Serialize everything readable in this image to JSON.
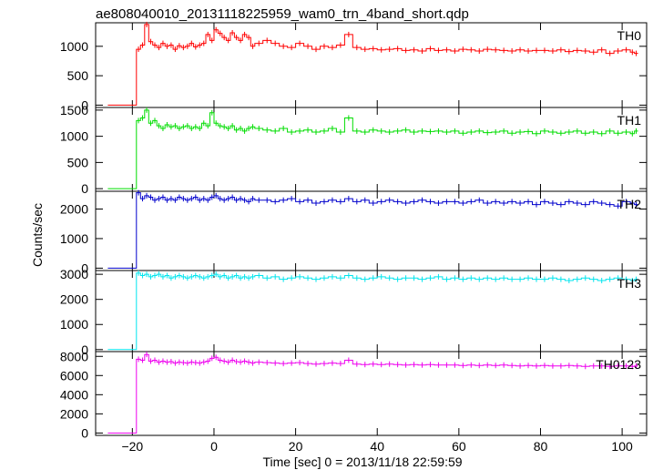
{
  "chart_data": {
    "type": "line",
    "title": "ae808040010_20131118225959_wam0_trn_4band_short.qdp",
    "xlabel": "Time [sec] 0 = 2013/11/18 22:59:59",
    "ylabel": "Counts/sec",
    "xlim": [
      -29,
      106
    ],
    "xticks": [
      -20,
      0,
      20,
      40,
      60,
      80,
      100
    ],
    "xtick_labels": [
      "−20",
      "0",
      "20",
      "40",
      "60",
      "80",
      "100"
    ],
    "grid": false,
    "panels": [
      {
        "name": "TH0",
        "color": "#ff0000",
        "ylim": [
          -40,
          1400
        ],
        "yticks": [
          0,
          500,
          1000
        ],
        "ytick_labels": [
          "0",
          "500",
          "1000"
        ],
        "x": [
          -26,
          -20,
          -19,
          -18,
          -17,
          -16,
          -15,
          -14,
          -13,
          -12,
          -11,
          -10,
          -9,
          -8,
          -7,
          -6,
          -5,
          -4,
          -3,
          -2,
          -1,
          0,
          1,
          2,
          3,
          4,
          5,
          6,
          7,
          8,
          9,
          10,
          12,
          14,
          16,
          18,
          20,
          22,
          24,
          26,
          28,
          30,
          32,
          34,
          36,
          38,
          40,
          42,
          44,
          46,
          48,
          50,
          52,
          54,
          56,
          58,
          60,
          62,
          64,
          66,
          68,
          70,
          72,
          74,
          76,
          78,
          80,
          82,
          84,
          86,
          88,
          90,
          92,
          94,
          96,
          98,
          100,
          102,
          103
        ],
        "y": [
          0,
          0,
          950,
          1020,
          1370,
          1080,
          1020,
          980,
          1050,
          1000,
          1020,
          950,
          1010,
          980,
          1000,
          1050,
          990,
          1020,
          1050,
          1200,
          1100,
          1280,
          1220,
          1150,
          1100,
          1230,
          1150,
          1100,
          1200,
          1150,
          1000,
          1050,
          1100,
          1050,
          1000,
          980,
          1050,
          1000,
          950,
          1000,
          980,
          1020,
          1200,
          980,
          950,
          960,
          940,
          950,
          960,
          930,
          940,
          920,
          960,
          930,
          940,
          920,
          950,
          940,
          920,
          950,
          940,
          930,
          920,
          940,
          920,
          930,
          930,
          920,
          940,
          910,
          930,
          920,
          900,
          940,
          880,
          920,
          940,
          900,
          880
        ]
      },
      {
        "name": "TH1",
        "color": "#00dd00",
        "ylim": [
          -50,
          1550
        ],
        "yticks": [
          0,
          500,
          1000,
          1500
        ],
        "ytick_labels": [
          "0",
          "500",
          "1000",
          "1500"
        ],
        "x": [
          -26,
          -20,
          -19,
          -18,
          -17,
          -16,
          -15,
          -14,
          -13,
          -12,
          -11,
          -10,
          -9,
          -8,
          -7,
          -6,
          -5,
          -4,
          -3,
          -2,
          -1,
          0,
          1,
          2,
          3,
          4,
          5,
          6,
          7,
          8,
          9,
          10,
          12,
          14,
          16,
          18,
          20,
          22,
          24,
          26,
          28,
          30,
          32,
          34,
          36,
          38,
          40,
          42,
          44,
          46,
          48,
          50,
          52,
          54,
          56,
          58,
          60,
          62,
          64,
          66,
          68,
          70,
          72,
          74,
          76,
          78,
          80,
          82,
          84,
          86,
          88,
          90,
          92,
          94,
          96,
          98,
          100,
          102,
          103
        ],
        "y": [
          0,
          0,
          1300,
          1350,
          1500,
          1250,
          1300,
          1200,
          1150,
          1220,
          1180,
          1200,
          1150,
          1180,
          1200,
          1150,
          1180,
          1150,
          1250,
          1200,
          1450,
          1250,
          1200,
          1180,
          1150,
          1200,
          1120,
          1150,
          1100,
          1150,
          1180,
          1150,
          1120,
          1100,
          1150,
          1080,
          1100,
          1120,
          1080,
          1100,
          1150,
          1080,
          1350,
          1100,
          1080,
          1120,
          1100,
          1080,
          1100,
          1120,
          1080,
          1100,
          1090,
          1100,
          1080,
          1100,
          1060,
          1080,
          1100,
          1070,
          1080,
          1100,
          1060,
          1080,
          1090,
          1050,
          1100,
          1080,
          1060,
          1080,
          1100,
          1060,
          1080,
          1050,
          1100,
          1060,
          1080,
          1050,
          1100
        ]
      },
      {
        "name": "TH2",
        "color": "#0000cc",
        "ylim": [
          -80,
          2600
        ],
        "yticks": [
          0,
          1000,
          2000
        ],
        "ytick_labels": [
          "0",
          "1000",
          "2000"
        ],
        "x": [
          -26,
          -20,
          -19,
          -18,
          -17,
          -16,
          -15,
          -14,
          -13,
          -12,
          -11,
          -10,
          -9,
          -8,
          -7,
          -6,
          -5,
          -4,
          -3,
          -2,
          -1,
          0,
          1,
          2,
          3,
          4,
          5,
          6,
          7,
          8,
          9,
          10,
          12,
          14,
          16,
          18,
          20,
          22,
          24,
          26,
          28,
          30,
          32,
          34,
          36,
          38,
          40,
          42,
          44,
          46,
          48,
          50,
          52,
          54,
          56,
          58,
          60,
          62,
          64,
          66,
          68,
          70,
          72,
          74,
          76,
          78,
          80,
          82,
          84,
          86,
          88,
          90,
          92,
          94,
          96,
          98,
          100,
          102,
          103
        ],
        "y": [
          0,
          0,
          2550,
          2350,
          2450,
          2400,
          2300,
          2350,
          2400,
          2300,
          2350,
          2300,
          2400,
          2350,
          2300,
          2350,
          2400,
          2300,
          2350,
          2300,
          2400,
          2450,
          2350,
          2300,
          2350,
          2400,
          2300,
          2350,
          2300,
          2250,
          2350,
          2300,
          2300,
          2250,
          2300,
          2350,
          2250,
          2300,
          2200,
          2250,
          2300,
          2250,
          2350,
          2250,
          2300,
          2200,
          2250,
          2300,
          2250,
          2200,
          2250,
          2300,
          2250,
          2200,
          2250,
          2250,
          2200,
          2250,
          2300,
          2200,
          2250,
          2200,
          2250,
          2200,
          2250,
          2150,
          2250,
          2200,
          2150,
          2250,
          2200,
          2150,
          2250,
          2200,
          2150,
          2100,
          2250,
          2200,
          2150
        ]
      },
      {
        "name": "TH3",
        "color": "#00e5ee",
        "ylim": [
          -80,
          3150
        ],
        "yticks": [
          0,
          1000,
          2000,
          3000
        ],
        "ytick_labels": [
          "0",
          "1000",
          "2000",
          "3000"
        ],
        "x": [
          -26,
          -20,
          -19,
          -18,
          -17,
          -16,
          -15,
          -14,
          -13,
          -12,
          -11,
          -10,
          -9,
          -8,
          -7,
          -6,
          -5,
          -4,
          -3,
          -2,
          -1,
          0,
          1,
          2,
          3,
          4,
          5,
          6,
          7,
          8,
          9,
          10,
          12,
          14,
          16,
          18,
          20,
          22,
          24,
          26,
          28,
          30,
          32,
          34,
          36,
          38,
          40,
          42,
          44,
          46,
          48,
          50,
          52,
          54,
          56,
          58,
          60,
          62,
          64,
          66,
          68,
          70,
          72,
          74,
          76,
          78,
          80,
          82,
          84,
          86,
          88,
          90,
          92,
          94,
          96,
          98,
          100,
          102,
          103
        ],
        "y": [
          0,
          0,
          3050,
          2950,
          3000,
          2900,
          2950,
          3000,
          2900,
          2950,
          2850,
          2900,
          2950,
          2900,
          2850,
          2900,
          2950,
          2900,
          2850,
          2900,
          2950,
          3000,
          2900,
          2950,
          2850,
          2900,
          2950,
          2850,
          2900,
          2850,
          2900,
          2950,
          2850,
          2900,
          2800,
          2850,
          2900,
          2850,
          2800,
          2850,
          2900,
          2850,
          2950,
          2850,
          2800,
          2850,
          2900,
          2850,
          2800,
          2850,
          2850,
          2800,
          2850,
          2900,
          2800,
          2850,
          2800,
          2850,
          2800,
          2850,
          2800,
          2850,
          2800,
          2800,
          2850,
          2800,
          2800,
          2850,
          2800,
          2750,
          2800,
          2850,
          2800,
          2750,
          2800,
          2850,
          2800,
          2750,
          2800
        ]
      },
      {
        "name": "TH0123",
        "color": "#ee00ee",
        "ylim": [
          -250,
          8500
        ],
        "yticks": [
          0,
          2000,
          4000,
          6000,
          8000
        ],
        "ytick_labels": [
          "0",
          "2000",
          "4000",
          "6000",
          "8000"
        ],
        "x": [
          -26,
          -20,
          -19,
          -18,
          -17,
          -16,
          -15,
          -14,
          -13,
          -12,
          -11,
          -10,
          -9,
          -8,
          -7,
          -6,
          -5,
          -4,
          -3,
          -2,
          -1,
          0,
          1,
          2,
          3,
          4,
          5,
          6,
          7,
          8,
          9,
          10,
          12,
          14,
          16,
          18,
          20,
          22,
          24,
          26,
          28,
          30,
          32,
          34,
          36,
          38,
          40,
          42,
          44,
          46,
          48,
          50,
          52,
          54,
          56,
          58,
          60,
          62,
          64,
          66,
          68,
          70,
          72,
          74,
          76,
          78,
          80,
          82,
          84,
          86,
          88,
          90,
          92,
          94,
          96,
          98,
          100,
          102,
          103
        ],
        "y": [
          0,
          0,
          7700,
          7600,
          8200,
          7500,
          7600,
          7400,
          7500,
          7400,
          7450,
          7300,
          7400,
          7350,
          7300,
          7400,
          7350,
          7300,
          7400,
          7500,
          7800,
          7900,
          7600,
          7500,
          7400,
          7600,
          7450,
          7400,
          7500,
          7400,
          7300,
          7400,
          7350,
          7300,
          7250,
          7300,
          7350,
          7250,
          7200,
          7250,
          7300,
          7250,
          7600,
          7200,
          7150,
          7200,
          7150,
          7200,
          7150,
          7100,
          7150,
          7100,
          7150,
          7100,
          7100,
          7100,
          7050,
          7100,
          7050,
          7100,
          7050,
          7100,
          7050,
          7000,
          7050,
          7000,
          7050,
          7000,
          7000,
          7050,
          7000,
          6950,
          7000,
          7000,
          6950,
          7000,
          7000,
          6950,
          7000
        ]
      }
    ]
  }
}
